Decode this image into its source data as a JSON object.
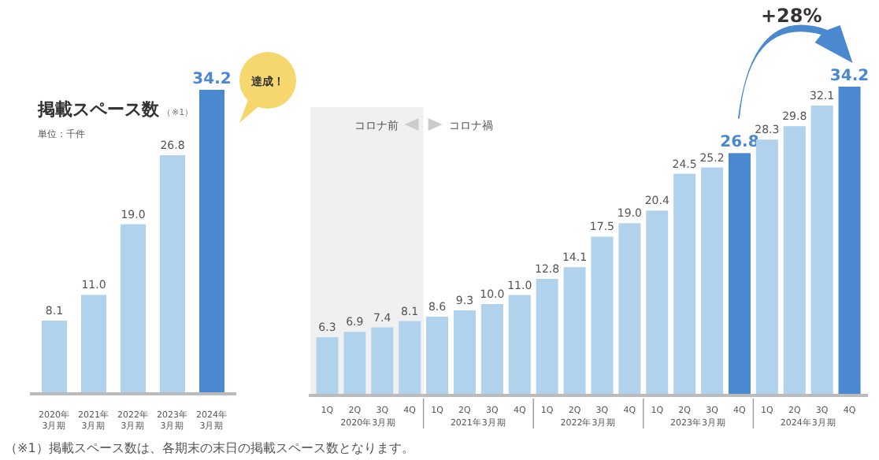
{
  "chart_data": [
    {
      "type": "bar",
      "title": "掲載スペース数",
      "subtitle": "単位：千件",
      "annotations": [
        "（※1）",
        "達成！",
        "（※1）掲載スペース数は、各期末の末日の掲載スペース数となります。"
      ],
      "categories": [
        "2020年3月期",
        "2021年3月期",
        "2022年3月期",
        "2023年3月期",
        "2024年3月期"
      ],
      "values": [
        8.1,
        11.0,
        19.0,
        26.8,
        34.2
      ],
      "value_labels": [
        "8.1",
        "11.0",
        "19.0",
        "26.8",
        "34.2"
      ],
      "colors": [
        "#b0d2ec",
        "#b0d2ec",
        "#b0d2ec",
        "#b0d2ec",
        "#4a89d0"
      ],
      "ylim": [
        0,
        34.2
      ],
      "tick_labels": false
    },
    {
      "type": "bar",
      "categories": [
        "1Q",
        "2Q",
        "3Q",
        "4Q",
        "1Q",
        "2Q",
        "3Q",
        "4Q",
        "1Q",
        "2Q",
        "3Q",
        "4Q",
        "1Q",
        "2Q",
        "3Q",
        "4Q",
        "1Q",
        "2Q",
        "3Q",
        "4Q"
      ],
      "values": [
        6.3,
        6.9,
        7.4,
        8.1,
        8.6,
        9.3,
        10.0,
        11.0,
        12.8,
        14.1,
        17.5,
        19.0,
        20.4,
        24.5,
        25.2,
        26.8,
        28.3,
        29.8,
        32.1,
        34.2
      ],
      "value_labels": [
        "6.3",
        "6.9",
        "7.4",
        "8.1",
        "8.6",
        "9.3",
        "10.0",
        "11.0",
        "12.8",
        "14.1",
        "17.5",
        "19.0",
        "20.4",
        "24.5",
        "25.2",
        "26.8",
        "28.3",
        "29.8",
        "32.1",
        "34.2"
      ],
      "colors": [
        "#b0d2ec",
        "#b0d2ec",
        "#b0d2ec",
        "#b0d2ec",
        "#b0d2ec",
        "#b0d2ec",
        "#b0d2ec",
        "#b0d2ec",
        "#b0d2ec",
        "#b0d2ec",
        "#b0d2ec",
        "#b0d2ec",
        "#b0d2ec",
        "#b0d2ec",
        "#b0d2ec",
        "#4a89d0",
        "#b0d2ec",
        "#b0d2ec",
        "#b0d2ec",
        "#4a89d0"
      ],
      "annotations": [
        "コロナ前",
        "コロナ禍",
        "2020年3月期",
        "2021年3月期",
        "2022年3月期",
        "2023年3月期",
        "2024年3月期",
        "+28%"
      ],
      "ylim": [
        0,
        34.2
      ],
      "tick_labels": "x"
    }
  ]
}
